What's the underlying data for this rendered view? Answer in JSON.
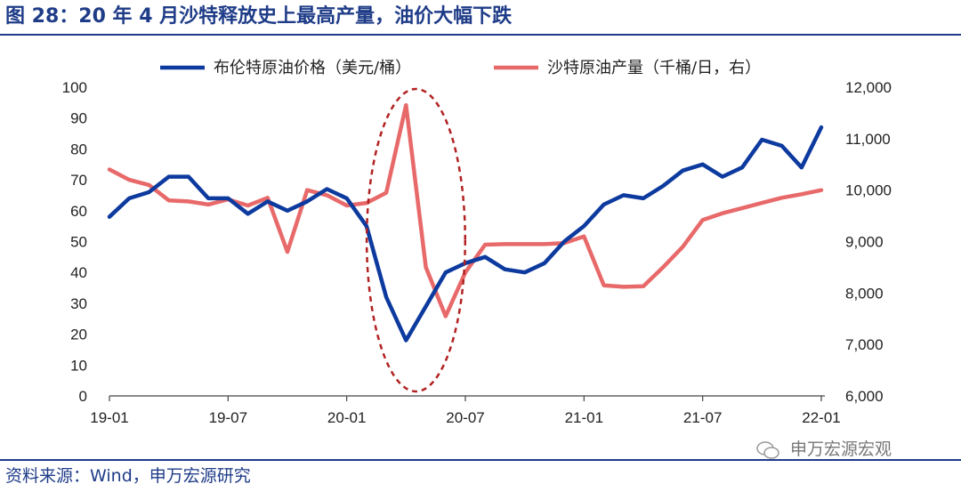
{
  "header": {
    "title": "图 28：20 年 4 月沙特释放史上最高产量，油价大幅下跌"
  },
  "footer": {
    "source": "资料来源：Wind，申万宏源研究"
  },
  "watermark": {
    "text": "申万宏源宏观",
    "icon": "wechat-icon"
  },
  "colors": {
    "brent": "#0d3a9e",
    "saudi": "#e86969",
    "ellipse": "#b22222",
    "title": "#1f3c88"
  },
  "chart_data": {
    "type": "line",
    "x": [
      "19-01",
      "19-02",
      "19-03",
      "19-04",
      "19-05",
      "19-06",
      "19-07",
      "19-08",
      "19-09",
      "19-10",
      "19-11",
      "19-12",
      "20-01",
      "20-02",
      "20-03",
      "20-04",
      "20-05",
      "20-06",
      "20-07",
      "20-08",
      "20-09",
      "20-10",
      "20-11",
      "20-12",
      "21-01",
      "21-02",
      "21-03",
      "21-04",
      "21-05",
      "21-06",
      "21-07",
      "21-08",
      "21-09",
      "21-10",
      "21-11",
      "21-12",
      "22-01"
    ],
    "xticks": [
      "19-01",
      "19-07",
      "20-01",
      "20-07",
      "21-01",
      "21-07",
      "22-01"
    ],
    "series": [
      {
        "name": "布伦特原油价格（美元/桶）",
        "axis": "left",
        "values": [
          58,
          64,
          66,
          71,
          71,
          64,
          64,
          59,
          63,
          60,
          63,
          67,
          64,
          55,
          32,
          18,
          29,
          40,
          43,
          45,
          41,
          40,
          43,
          50,
          55,
          62,
          65,
          64,
          68,
          73,
          75,
          71,
          74,
          83,
          81,
          74,
          87
        ]
      },
      {
        "name": "沙特原油产量（千桶/日，右）",
        "axis": "right",
        "values": [
          10400,
          10200,
          10100,
          9800,
          9780,
          9720,
          9820,
          9700,
          9850,
          8800,
          10000,
          9900,
          9700,
          9750,
          9950,
          11650,
          8500,
          7550,
          8400,
          8940,
          8950,
          8950,
          8950,
          8970,
          9100,
          8150,
          8120,
          8130,
          8500,
          8900,
          9420,
          9550,
          9650,
          9750,
          9850,
          9920,
          10000
        ]
      }
    ],
    "y_left": {
      "min": 0,
      "max": 100,
      "ticks": [
        "0",
        "10",
        "20",
        "30",
        "40",
        "50",
        "60",
        "70",
        "80",
        "90",
        "100"
      ]
    },
    "y_right": {
      "min": 6000,
      "max": 12000,
      "ticks": [
        "6,000",
        "7,000",
        "8,000",
        "9,000",
        "10,000",
        "11,000",
        "12,000"
      ]
    },
    "annotation": {
      "shape": "dashed-ellipse",
      "around": [
        "20-03",
        "20-06"
      ]
    },
    "legend": "top"
  }
}
